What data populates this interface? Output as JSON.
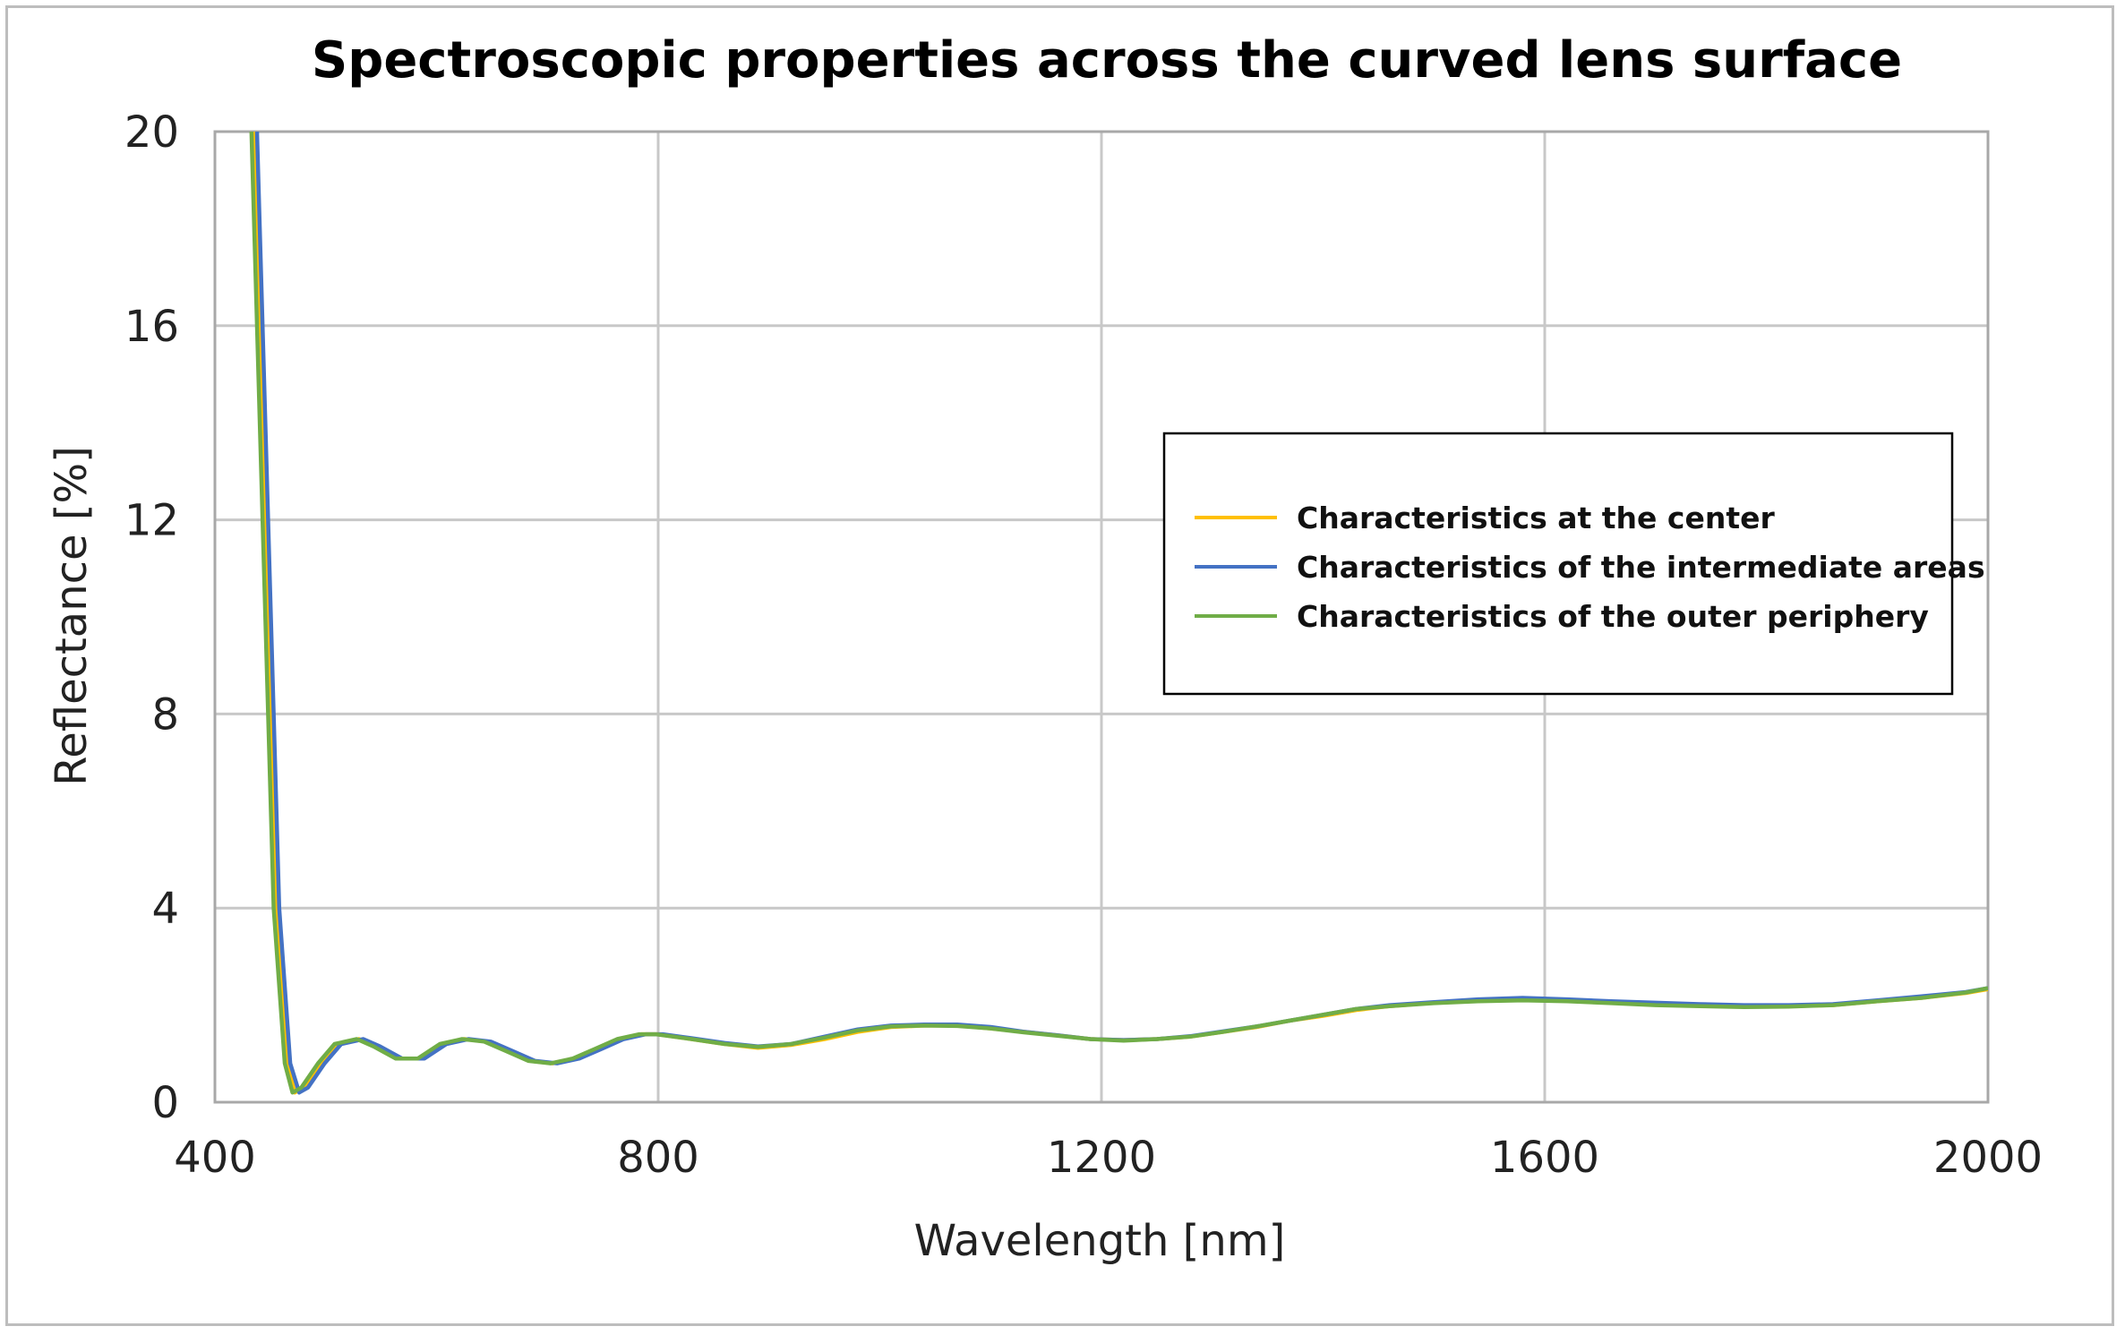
{
  "chart_data": {
    "type": "line",
    "title": "Spectroscopic properties across the curved lens surface",
    "xlabel": "Wavelength [nm]",
    "ylabel": "Reflectance  [%]",
    "xlim": [
      400,
      2000
    ],
    "ylim": [
      0,
      20
    ],
    "xticks": [
      "400",
      "800",
      "1200",
      "1600",
      "2000"
    ],
    "yticks": [
      "0",
      "4",
      "8",
      "12",
      "16",
      "20"
    ],
    "grid": true,
    "legend_position": "center-right",
    "series": [
      {
        "name": "Characteristics at the center",
        "color": "#FFC000",
        "x": [
          435,
          445,
          455,
          465,
          472,
          480,
          495,
          510,
          530,
          545,
          565,
          585,
          605,
          625,
          645,
          665,
          685,
          705,
          725,
          745,
          765,
          785,
          800,
          830,
          860,
          890,
          920,
          950,
          980,
          1010,
          1040,
          1070,
          1100,
          1130,
          1160,
          1190,
          1220,
          1250,
          1280,
          1310,
          1340,
          1370,
          1400,
          1430,
          1460,
          1500,
          1540,
          1580,
          1620,
          1660,
          1700,
          1740,
          1780,
          1820,
          1860,
          1900,
          1940,
          1980,
          2000
        ],
        "y": [
          20,
          12,
          4,
          0.8,
          0.2,
          0.3,
          0.8,
          1.2,
          1.3,
          1.15,
          0.9,
          0.9,
          1.2,
          1.3,
          1.25,
          1.05,
          0.85,
          0.8,
          0.9,
          1.1,
          1.3,
          1.4,
          1.4,
          1.3,
          1.2,
          1.12,
          1.18,
          1.3,
          1.45,
          1.55,
          1.58,
          1.58,
          1.52,
          1.45,
          1.38,
          1.3,
          1.28,
          1.3,
          1.35,
          1.45,
          1.55,
          1.68,
          1.78,
          1.9,
          1.98,
          2.05,
          2.1,
          2.12,
          2.1,
          2.06,
          2.02,
          2.0,
          1.98,
          1.98,
          2.0,
          2.08,
          2.15,
          2.25,
          2.33
        ]
      },
      {
        "name": "Characteristics of the intermediate areas",
        "color": "#4472C4",
        "x": [
          438,
          448,
          458,
          468,
          476,
          484,
          499,
          514,
          534,
          549,
          569,
          589,
          609,
          629,
          649,
          669,
          689,
          709,
          729,
          749,
          769,
          789,
          804,
          830,
          860,
          890,
          920,
          950,
          980,
          1010,
          1040,
          1070,
          1100,
          1130,
          1160,
          1190,
          1220,
          1250,
          1280,
          1310,
          1340,
          1370,
          1400,
          1430,
          1460,
          1500,
          1540,
          1580,
          1620,
          1660,
          1700,
          1740,
          1780,
          1820,
          1860,
          1900,
          1940,
          1980,
          2000
        ],
        "y": [
          20,
          12,
          4,
          0.8,
          0.2,
          0.3,
          0.8,
          1.2,
          1.3,
          1.15,
          0.9,
          0.9,
          1.2,
          1.3,
          1.25,
          1.05,
          0.85,
          0.8,
          0.9,
          1.1,
          1.3,
          1.4,
          1.4,
          1.32,
          1.22,
          1.15,
          1.2,
          1.35,
          1.5,
          1.58,
          1.6,
          1.6,
          1.55,
          1.45,
          1.38,
          1.3,
          1.28,
          1.3,
          1.36,
          1.46,
          1.56,
          1.68,
          1.8,
          1.92,
          2.0,
          2.06,
          2.12,
          2.15,
          2.12,
          2.08,
          2.05,
          2.02,
          2.0,
          2.0,
          2.02,
          2.1,
          2.18,
          2.27,
          2.35
        ]
      },
      {
        "name": "Characteristics of the outer periphery",
        "color": "#70AD47",
        "x": [
          433,
          443,
          453,
          463,
          470,
          478,
          493,
          508,
          528,
          543,
          563,
          583,
          603,
          623,
          643,
          663,
          683,
          703,
          723,
          743,
          763,
          783,
          798,
          830,
          860,
          890,
          920,
          950,
          980,
          1010,
          1040,
          1070,
          1100,
          1130,
          1160,
          1190,
          1220,
          1250,
          1280,
          1310,
          1340,
          1370,
          1400,
          1430,
          1460,
          1500,
          1540,
          1580,
          1620,
          1660,
          1700,
          1740,
          1780,
          1820,
          1860,
          1900,
          1940,
          1980,
          2000
        ],
        "y": [
          20,
          12,
          4,
          0.8,
          0.2,
          0.3,
          0.8,
          1.2,
          1.3,
          1.15,
          0.9,
          0.9,
          1.2,
          1.3,
          1.25,
          1.05,
          0.85,
          0.8,
          0.9,
          1.1,
          1.3,
          1.4,
          1.4,
          1.3,
          1.2,
          1.14,
          1.2,
          1.33,
          1.48,
          1.56,
          1.58,
          1.57,
          1.52,
          1.44,
          1.37,
          1.3,
          1.27,
          1.3,
          1.35,
          1.45,
          1.56,
          1.68,
          1.8,
          1.92,
          1.98,
          2.04,
          2.08,
          2.1,
          2.08,
          2.04,
          2.0,
          1.98,
          1.96,
          1.97,
          2.0,
          2.08,
          2.15,
          2.26,
          2.35
        ]
      }
    ]
  }
}
